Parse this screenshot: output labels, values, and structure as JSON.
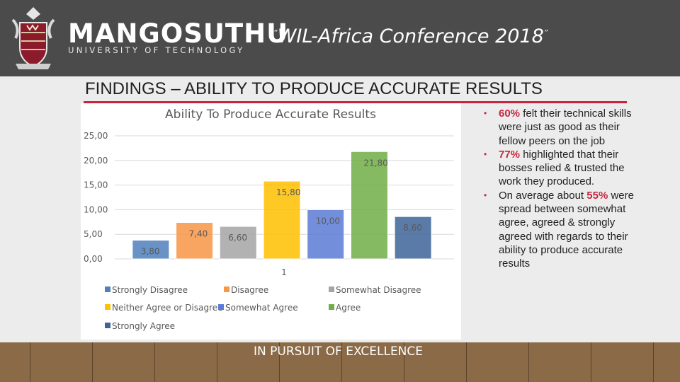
{
  "header": {
    "logo_name": "MANGOSUTHU",
    "logo_sub": "UNIVERSITY OF TECHNOLOGY",
    "conf_quote_open": "“",
    "conf_title": "WIL-Africa Conference 2018",
    "conf_quote_close": "”"
  },
  "section_title": "FINDINGS – ABILITY TO PRODUCE ACCURATE RESULTS",
  "chart_data": {
    "type": "bar",
    "title": "Ability To Produce Accurate Results",
    "categories": [
      "1"
    ],
    "ylim": [
      0,
      25
    ],
    "y_ticks": [
      "0,00",
      "5,00",
      "10,00",
      "15,00",
      "20,00",
      "25,00"
    ],
    "grid": true,
    "legend_position": "bottom",
    "series": [
      {
        "name": "Strongly Disagree",
        "values": [
          3.8
        ],
        "label": "3,80",
        "color": "#4f81bd"
      },
      {
        "name": "Disagree",
        "values": [
          7.4
        ],
        "label": "7,40",
        "color": "#f79646"
      },
      {
        "name": "Somewhat Disagree",
        "values": [
          6.6
        ],
        "label": "6,60",
        "color": "#a5a5a5"
      },
      {
        "name": "Neither Agree or Disagree",
        "values": [
          15.8
        ],
        "label": "15,80",
        "color": "#ffc000"
      },
      {
        "name": "Somewhat Agree",
        "values": [
          10.0
        ],
        "label": "10,00",
        "color": "#5b7bd5"
      },
      {
        "name": "Agree",
        "values": [
          21.8
        ],
        "label": "21,80",
        "color": "#70ad47"
      },
      {
        "name": "Strongly Agree",
        "values": [
          8.6
        ],
        "label": "8,60",
        "color": "#3e6598"
      }
    ]
  },
  "bullets": [
    {
      "highlight": "60%",
      "text": " felt their technical skills were just as good as their fellow peers on the job"
    },
    {
      "highlight": "77%",
      "text": " highlighted that their bosses relied & trusted the work they produced."
    },
    {
      "pre": "On average about ",
      "highlight": "55%",
      "text": " were spread between somewhat agree, agreed & strongly agreed with regards to their ability to produce accurate results"
    }
  ],
  "footer": "IN PURSUIT OF EXCELLENCE",
  "colors": {
    "header_bg": "#4b4b4b",
    "accent": "#c9243f",
    "floor": "#8a6a47"
  }
}
